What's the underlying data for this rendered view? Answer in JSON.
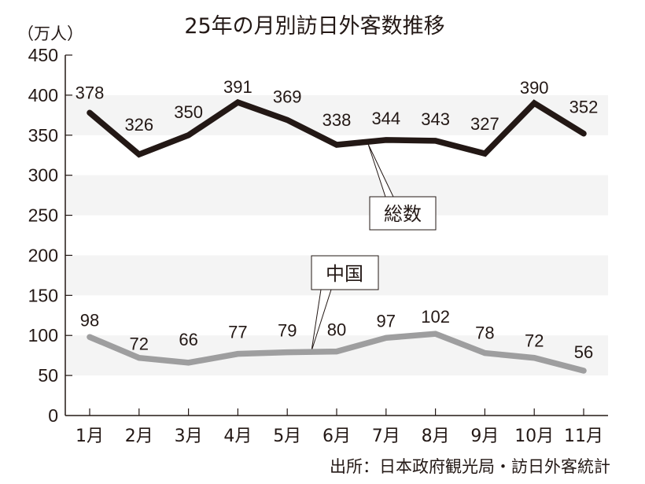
{
  "chart_data": {
    "type": "line",
    "title": "25年の月別訪日外客数推移",
    "ylabel": "（万人）",
    "xlabel": "",
    "categories": [
      "1月",
      "2月",
      "3月",
      "4月",
      "5月",
      "6月",
      "7月",
      "8月",
      "9月",
      "10月",
      "11月"
    ],
    "series": [
      {
        "name": "総数",
        "color": "#231815",
        "values": [
          378,
          326,
          350,
          391,
          369,
          338,
          344,
          343,
          327,
          390,
          352
        ]
      },
      {
        "name": "中国",
        "color": "#9e9e9f",
        "values": [
          98,
          72,
          66,
          77,
          79,
          80,
          97,
          102,
          78,
          72,
          56
        ]
      }
    ],
    "ylim": [
      0,
      450
    ],
    "yticks": [
      0,
      50,
      100,
      150,
      200,
      250,
      300,
      350,
      400,
      450
    ],
    "grid": "alternating horizontal bands",
    "legend": "callout labels on lines",
    "annotations": [
      "総数",
      "中国"
    ],
    "source": "出所：日本政府観光局・訪日外客統計"
  },
  "title": "25年の月別訪日外客数推移",
  "unit_label": "（万人）",
  "callouts": {
    "total": "総数",
    "china": "中国"
  },
  "source": "出所：日本政府観光局・訪日外客統計",
  "colors": {
    "total_line": "#231815",
    "china_line": "#9e9e9f",
    "band": "#f4f4f4",
    "axis": "#231815"
  }
}
